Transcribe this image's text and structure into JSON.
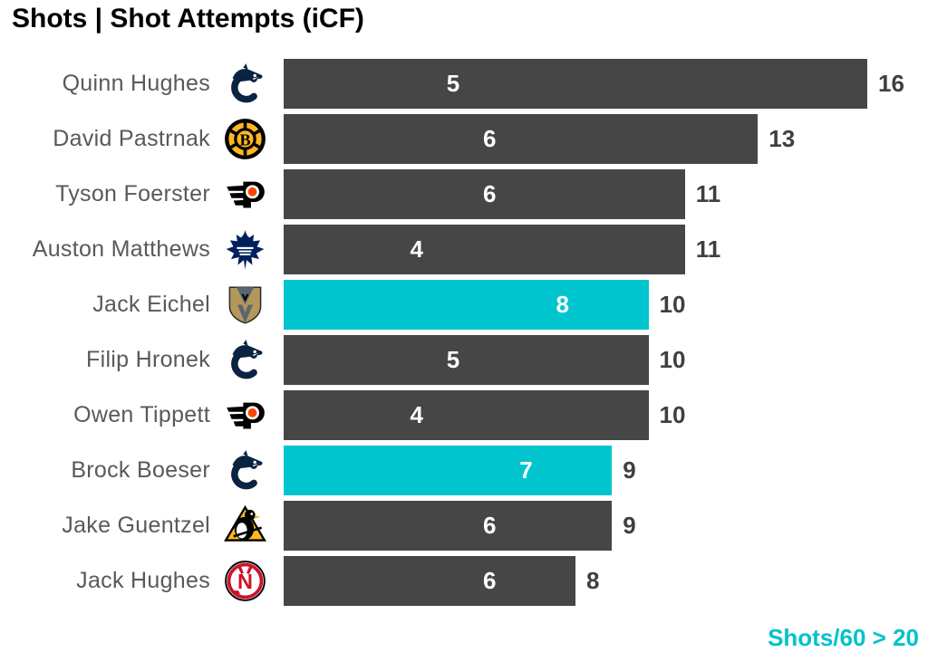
{
  "title": "Shots | Shot Attempts (iCF)",
  "footer": {
    "label": "Shots/60 > 20"
  },
  "colors": {
    "bar_default": "#464646",
    "bar_highlight": "#00C5CE",
    "inner_label": "#ffffff",
    "total_label": "#3f3f3f",
    "player_name": "#595959",
    "footer_text": "#00C2CC",
    "title_text": "#000000"
  },
  "chart_data": {
    "type": "bar",
    "orientation": "horizontal",
    "title": "Shots | Shot Attempts (iCF)",
    "x_max": 16,
    "grid": false,
    "legend_position": "bottom-right",
    "legend_note": "Shots/60 > 20",
    "highlight_meaning": "Teal bars = players with Shots/60 > 20",
    "categories": [
      "Quinn Hughes",
      "David Pastrnak",
      "Tyson Foerster",
      "Auston Matthews",
      "Jack Eichel",
      "Filip Hronek",
      "Owen Tippett",
      "Brock Boeser",
      "Jake Guentzel",
      "Jack Hughes"
    ],
    "series": [
      {
        "name": "Shots",
        "values": [
          5,
          6,
          6,
          4,
          8,
          5,
          4,
          7,
          6,
          6
        ]
      },
      {
        "name": "Shot Attempts (iCF)",
        "values": [
          16,
          13,
          11,
          11,
          10,
          10,
          10,
          9,
          9,
          8
        ]
      }
    ],
    "rows": [
      {
        "player": "Quinn Hughes",
        "team": "VAN",
        "team_name": "Vancouver Canucks",
        "shots": 5,
        "attempts": 16,
        "highlighted": false
      },
      {
        "player": "David Pastrnak",
        "team": "BOS",
        "team_name": "Boston Bruins",
        "shots": 6,
        "attempts": 13,
        "highlighted": false
      },
      {
        "player": "Tyson Foerster",
        "team": "PHI",
        "team_name": "Philadelphia Flyers",
        "shots": 6,
        "attempts": 11,
        "highlighted": false
      },
      {
        "player": "Auston Matthews",
        "team": "TOR",
        "team_name": "Toronto Maple Leafs",
        "shots": 4,
        "attempts": 11,
        "highlighted": false
      },
      {
        "player": "Jack Eichel",
        "team": "VGK",
        "team_name": "Vegas Golden Knights",
        "shots": 8,
        "attempts": 10,
        "highlighted": true
      },
      {
        "player": "Filip Hronek",
        "team": "VAN",
        "team_name": "Vancouver Canucks",
        "shots": 5,
        "attempts": 10,
        "highlighted": false
      },
      {
        "player": "Owen Tippett",
        "team": "PHI",
        "team_name": "Philadelphia Flyers",
        "shots": 4,
        "attempts": 10,
        "highlighted": false
      },
      {
        "player": "Brock Boeser",
        "team": "VAN",
        "team_name": "Vancouver Canucks",
        "shots": 7,
        "attempts": 9,
        "highlighted": true
      },
      {
        "player": "Jake Guentzel",
        "team": "PIT",
        "team_name": "Pittsburgh Penguins",
        "shots": 6,
        "attempts": 9,
        "highlighted": false
      },
      {
        "player": "Jack Hughes",
        "team": "NJD",
        "team_name": "New Jersey Devils",
        "shots": 6,
        "attempts": 8,
        "highlighted": false
      }
    ]
  }
}
